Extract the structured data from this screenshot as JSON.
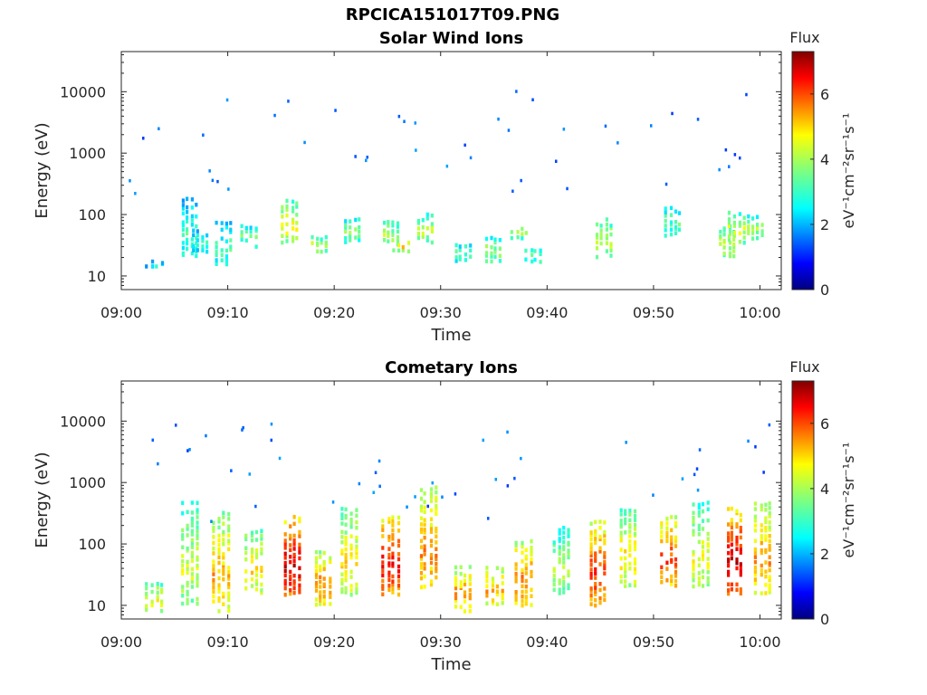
{
  "title": "RPCICA151017T09.PNG",
  "chart_data": [
    {
      "type": "heatmap",
      "title": "Solar Wind Ions",
      "xlabel": "Time",
      "ylabel": "Energy (eV)",
      "y_scale": "log",
      "ylim": [
        6,
        45000
      ],
      "xlim": [
        "09:00",
        "10:02"
      ],
      "x_ticks": [
        "09:00",
        "09:10",
        "09:20",
        "09:30",
        "09:40",
        "09:50",
        "10:00"
      ],
      "y_ticks": [
        "10",
        "100",
        "1000",
        "10000"
      ],
      "colorbar": {
        "label": "Flux",
        "unit": "eV⁻¹cm⁻²sr⁻¹s⁻¹",
        "range": [
          0,
          7.3
        ],
        "ticks": [
          "0",
          "2",
          "4",
          "6"
        ],
        "colormap": "jet"
      },
      "bursts": [
        {
          "t": 3.0,
          "e_low": 13,
          "e_high": 17,
          "flux": 2.8
        },
        {
          "t": 6.3,
          "e_low": 20,
          "e_high": 200,
          "flux": 3.2
        },
        {
          "t": 7.3,
          "e_low": 25,
          "e_high": 60,
          "flux": 3.0
        },
        {
          "t": 9.5,
          "e_low": 15,
          "e_high": 80,
          "flux": 3.3
        },
        {
          "t": 11.8,
          "e_low": 30,
          "e_high": 70,
          "flux": 3.6
        },
        {
          "t": 15.7,
          "e_low": 35,
          "e_high": 180,
          "flux": 4.6
        },
        {
          "t": 18.5,
          "e_low": 25,
          "e_high": 45,
          "flux": 4.2
        },
        {
          "t": 21.6,
          "e_low": 35,
          "e_high": 90,
          "flux": 3.8
        },
        {
          "t": 25.2,
          "e_low": 30,
          "e_high": 85,
          "flux": 4.0
        },
        {
          "t": 26.2,
          "e_low": 25,
          "e_high": 40,
          "flux": 4.8
        },
        {
          "t": 28.4,
          "e_low": 35,
          "e_high": 110,
          "flux": 4.2
        },
        {
          "t": 32.0,
          "e_low": 17,
          "e_high": 35,
          "flux": 3.5
        },
        {
          "t": 34.8,
          "e_low": 17,
          "e_high": 45,
          "flux": 3.9
        },
        {
          "t": 37.3,
          "e_low": 40,
          "e_high": 70,
          "flux": 4.0
        },
        {
          "t": 38.6,
          "e_low": 17,
          "e_high": 30,
          "flux": 3.6
        },
        {
          "t": 45.2,
          "e_low": 20,
          "e_high": 90,
          "flux": 4.2
        },
        {
          "t": 51.7,
          "e_low": 45,
          "e_high": 150,
          "flux": 3.4
        },
        {
          "t": 56.8,
          "e_low": 20,
          "e_high": 70,
          "flux": 4.2
        },
        {
          "t": 57.7,
          "e_low": 35,
          "e_high": 120,
          "flux": 4.3
        },
        {
          "t": 59.5,
          "e_low": 40,
          "e_high": 100,
          "flux": 4.0
        }
      ]
    },
    {
      "type": "heatmap",
      "title": "Cometary Ions",
      "xlabel": "Time",
      "ylabel": "Energy (eV)",
      "y_scale": "log",
      "ylim": [
        6,
        45000
      ],
      "xlim": [
        "09:00",
        "10:02"
      ],
      "x_ticks": [
        "09:00",
        "09:10",
        "09:20",
        "09:30",
        "09:40",
        "09:50",
        "10:00"
      ],
      "y_ticks": [
        "10",
        "100",
        "1000",
        "10000"
      ],
      "colorbar": {
        "label": "Flux",
        "unit": "eV⁻¹cm⁻²sr⁻¹s⁻¹",
        "range": [
          0,
          7.3
        ],
        "ticks": [
          "0",
          "2",
          "4",
          "6"
        ],
        "colormap": "jet"
      },
      "bursts": [
        {
          "t": 3.0,
          "e_low": 8,
          "e_high": 25,
          "flux": 4.6
        },
        {
          "t": 6.3,
          "e_low": 10,
          "e_high": 500,
          "flux": 4.3
        },
        {
          "t": 9.3,
          "e_low": 8,
          "e_high": 350,
          "flux": 5.2
        },
        {
          "t": 12.3,
          "e_low": 15,
          "e_high": 180,
          "flux": 4.8
        },
        {
          "t": 15.9,
          "e_low": 15,
          "e_high": 300,
          "flux": 6.8
        },
        {
          "t": 18.8,
          "e_low": 10,
          "e_high": 80,
          "flux": 5.5
        },
        {
          "t": 21.3,
          "e_low": 15,
          "e_high": 400,
          "flux": 4.8
        },
        {
          "t": 25.2,
          "e_low": 15,
          "e_high": 300,
          "flux": 6.4
        },
        {
          "t": 28.7,
          "e_low": 20,
          "e_high": 900,
          "flux": 5.5
        },
        {
          "t": 32.0,
          "e_low": 8,
          "e_high": 45,
          "flux": 5.4
        },
        {
          "t": 35.0,
          "e_low": 10,
          "e_high": 45,
          "flux": 5.2
        },
        {
          "t": 37.7,
          "e_low": 10,
          "e_high": 120,
          "flux": 5.6
        },
        {
          "t": 41.2,
          "e_low": 15,
          "e_high": 200,
          "flux": 4.0
        },
        {
          "t": 44.7,
          "e_low": 10,
          "e_high": 250,
          "flux": 6.2
        },
        {
          "t": 47.5,
          "e_low": 20,
          "e_high": 400,
          "flux": 4.8
        },
        {
          "t": 51.3,
          "e_low": 20,
          "e_high": 300,
          "flux": 6.0
        },
        {
          "t": 54.3,
          "e_low": 20,
          "e_high": 500,
          "flux": 4.5
        },
        {
          "t": 57.5,
          "e_low": 15,
          "e_high": 400,
          "flux": 6.8
        },
        {
          "t": 60.2,
          "e_low": 15,
          "e_high": 500,
          "flux": 5.4
        }
      ]
    }
  ]
}
